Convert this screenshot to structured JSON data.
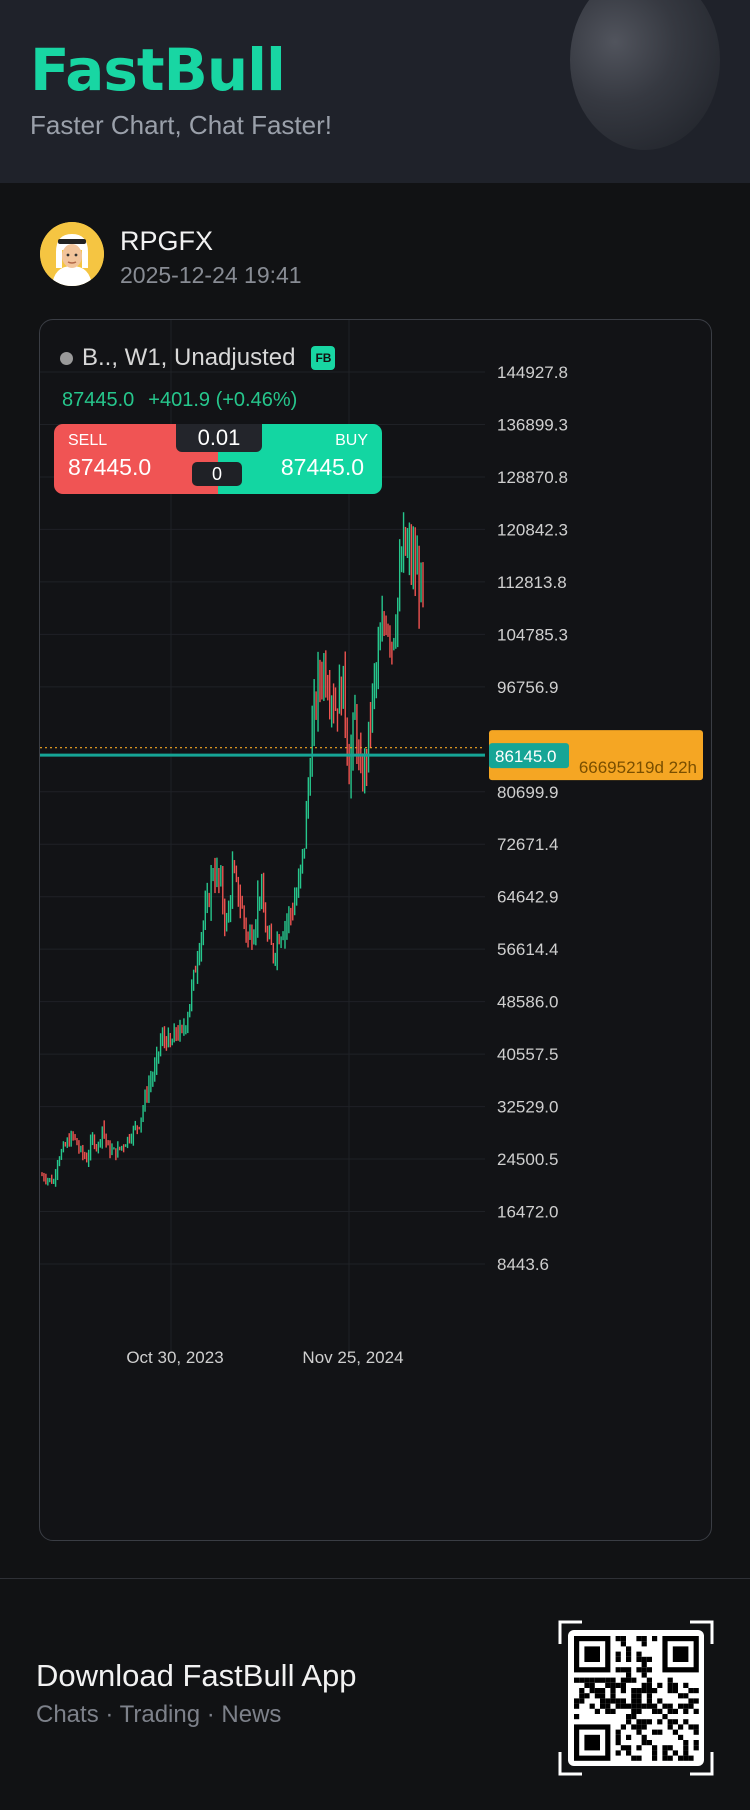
{
  "header": {
    "logo": "FastBull",
    "tagline": "Faster Chart, Chat Faster!"
  },
  "post": {
    "username": "RPGFX",
    "timestamp": "2025-12-24 19:41"
  },
  "chart_widget": {
    "symbol_info": "B.., W1, Unadjusted",
    "badge": "FB",
    "last_price": "87445.0",
    "change": "+401.9 (+0.46%)",
    "sell_label": "SELL",
    "sell_price": "87445.0",
    "buy_label": "BUY",
    "buy_price": "87445.0",
    "quantity": "0.01",
    "spread": "0",
    "current_price_tag": "86145.0",
    "countdown_label_partial": "66695219d 22h",
    "colors": {
      "up": "#26c68c",
      "down": "#ef5350",
      "sell": "#f05454",
      "buy": "#13d6a2",
      "price_line": "#16a596",
      "countdown_tag": "#f5a623"
    }
  },
  "chart_data": {
    "type": "candlestick",
    "title": "",
    "xlabel": "",
    "ylabel": "",
    "y_ticks": [
      "144927.8",
      "136899.3",
      "128870.8",
      "120842.3",
      "112813.8",
      "104785.3",
      "96756.9",
      "80699.9",
      "72671.4",
      "64642.9",
      "56614.4",
      "48586.0",
      "40557.5",
      "32529.0",
      "24500.5",
      "16472.0",
      "8443.6"
    ],
    "x_ticks": [
      "Oct 30, 2023",
      "Nov 25, 2024"
    ],
    "ylim": [
      3000,
      150000
    ],
    "current_price": 86145.0,
    "last_price": 87445.0,
    "grid": true
  },
  "footer": {
    "title": "Download FastBull App",
    "subtitle": "Chats · Trading · News"
  }
}
